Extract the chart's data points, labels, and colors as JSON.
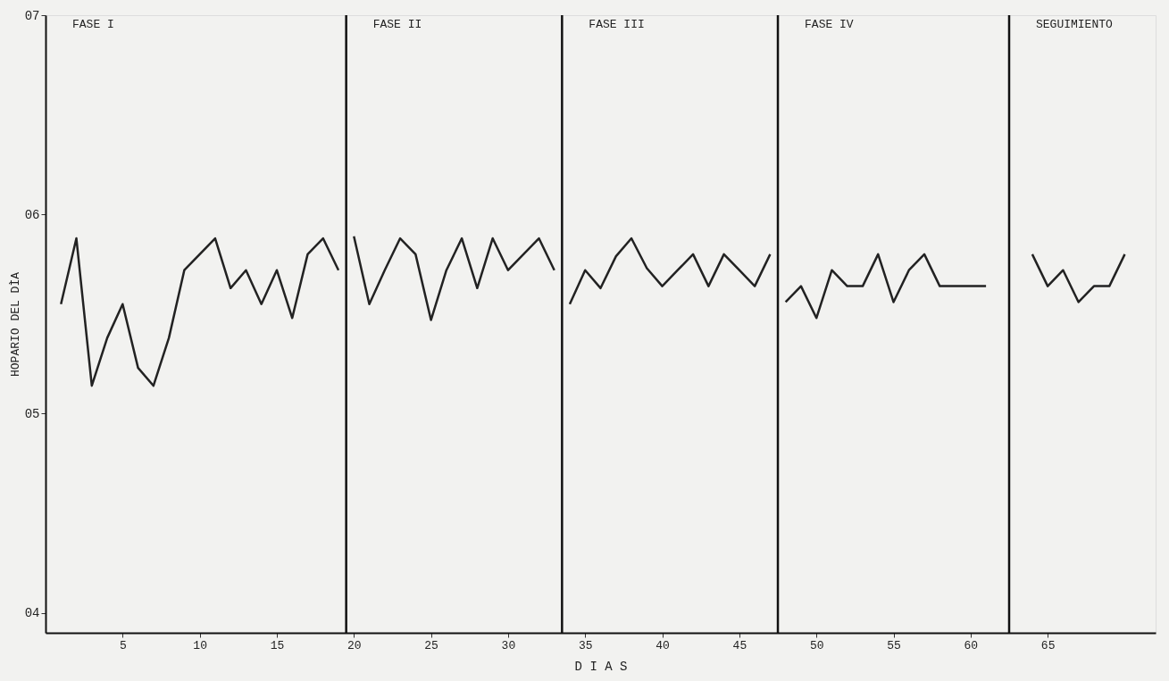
{
  "chart_data": {
    "type": "line",
    "xlabel": "D I A S",
    "ylabel": "HOPARIO DEL DÌA",
    "xlim": [
      0,
      72
    ],
    "xticks": [
      5,
      10,
      15,
      20,
      25,
      30,
      35,
      40,
      45,
      50,
      55,
      60,
      65
    ],
    "ylim": [
      3.9,
      7.0
    ],
    "yticks": [
      {
        "value": 4,
        "label": "04"
      },
      {
        "value": 5,
        "label": "05"
      },
      {
        "value": 6,
        "label": "06"
      },
      {
        "value": 7,
        "label": "07"
      }
    ],
    "series": [
      {
        "color": "#222222",
        "x": [
          1,
          2,
          3,
          4,
          5,
          6,
          7,
          8,
          9,
          10,
          11,
          12,
          13,
          14,
          15,
          16,
          17,
          18,
          19
        ],
        "values": [
          5.55,
          5.88,
          5.14,
          5.38,
          5.55,
          5.23,
          5.14,
          5.38,
          5.72,
          5.8,
          5.88,
          5.63,
          5.72,
          5.55,
          5.72,
          5.48,
          5.8,
          5.88,
          5.72
        ]
      },
      {
        "color": "#222222",
        "x": [
          20,
          21,
          22,
          23,
          24,
          25,
          26,
          27,
          28,
          29,
          30,
          31,
          32,
          33
        ],
        "values": [
          5.89,
          5.55,
          5.72,
          5.88,
          5.8,
          5.47,
          5.72,
          5.88,
          5.63,
          5.88,
          5.72,
          5.8,
          5.88,
          5.72
        ]
      },
      {
        "color": "#222222",
        "x": [
          34,
          35,
          36,
          37,
          38,
          39,
          40,
          41,
          42,
          43,
          44,
          45,
          46,
          47
        ],
        "values": [
          5.55,
          5.72,
          5.63,
          5.79,
          5.88,
          5.73,
          5.64,
          5.72,
          5.8,
          5.64,
          5.8,
          5.72,
          5.64,
          5.8
        ]
      },
      {
        "color": "#222222",
        "x": [
          48,
          49,
          50,
          51,
          52,
          53,
          54,
          55,
          56,
          57,
          58,
          59,
          60,
          61
        ],
        "values": [
          5.56,
          5.64,
          5.48,
          5.72,
          5.64,
          5.64,
          5.8,
          5.56,
          5.72,
          5.8,
          5.64,
          5.64,
          5.64,
          5.64
        ]
      },
      {
        "color": "#222222",
        "x": [
          64,
          65,
          66,
          67,
          68,
          69,
          70
        ],
        "values": [
          5.8,
          5.64,
          5.72,
          5.56,
          5.64,
          5.64,
          5.8
        ]
      }
    ],
    "ref_lines": [
      {
        "axis": "x",
        "value": 19.5,
        "color": "#111111"
      },
      {
        "axis": "x",
        "value": 33.5,
        "color": "#111111"
      },
      {
        "axis": "x",
        "value": 47.5,
        "color": "#111111"
      },
      {
        "axis": "x",
        "value": 62.5,
        "color": "#111111"
      }
    ],
    "annotations": [
      "FASE I",
      "FASE II",
      "FASE III",
      "FASE IV",
      "SEGUIMIENTO"
    ],
    "grid": false,
    "line_style": "solid"
  }
}
